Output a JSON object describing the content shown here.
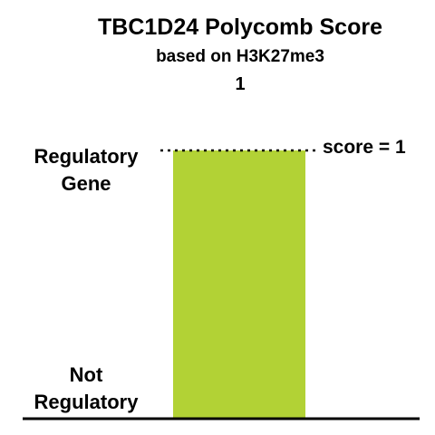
{
  "chart_data": {
    "type": "bar",
    "title": "TBC1D24 Polycomb Score",
    "subtitle": "based on H3K27me3",
    "value_label": "1",
    "categories": [
      ""
    ],
    "values": [
      1
    ],
    "ylim": [
      0,
      1
    ],
    "y_tick_labels": {
      "top": [
        "Regulatory",
        "Gene"
      ],
      "bottom": [
        "Not",
        "Regulatory"
      ]
    },
    "reference_line": {
      "y": 1,
      "label": "score = 1",
      "style": "dotted"
    },
    "bar_color": "#b2d235",
    "axis_color": "#000000",
    "grid": false
  }
}
